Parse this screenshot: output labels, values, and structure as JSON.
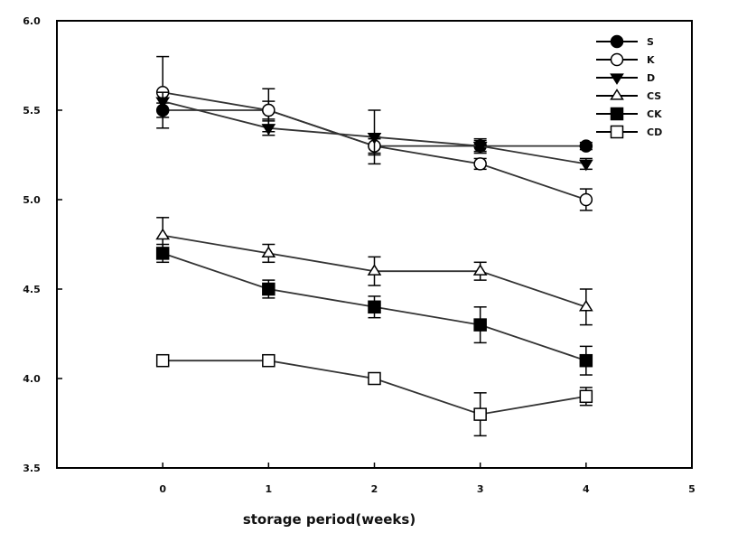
{
  "chart_data": {
    "type": "line",
    "title": "",
    "xlabel": "storage period(weeks)",
    "ylabel": "",
    "x": [
      0,
      1,
      2,
      3,
      4
    ],
    "xlim": [
      -1,
      5
    ],
    "ylim": [
      3.5,
      6.0
    ],
    "xticks": [
      "0",
      "1",
      "2",
      "3",
      "4",
      "5"
    ],
    "yticks": [
      "3.5",
      "4.0",
      "4.5",
      "5.0",
      "5.5",
      "6.0"
    ],
    "grid": false,
    "legend_position": "top-right",
    "series": [
      {
        "name": "S",
        "marker": "circle-filled",
        "values": [
          5.5,
          5.5,
          5.3,
          5.3,
          5.3
        ],
        "errors": [
          0.04,
          0.05,
          0.04,
          0.03,
          0.02
        ]
      },
      {
        "name": "K",
        "marker": "circle-open",
        "values": [
          5.6,
          5.5,
          5.3,
          5.2,
          5.0
        ],
        "errors": [
          0.2,
          0.12,
          0.05,
          0.03,
          0.06
        ]
      },
      {
        "name": "D",
        "marker": "triangle-filled",
        "values": [
          5.55,
          5.4,
          5.35,
          5.3,
          5.2
        ],
        "errors": [
          0.05,
          0.04,
          0.15,
          0.04,
          0.03
        ]
      },
      {
        "name": "CS",
        "marker": "triangle-open",
        "values": [
          4.8,
          4.7,
          4.6,
          4.6,
          4.4
        ],
        "errors": [
          0.1,
          0.05,
          0.08,
          0.05,
          0.1
        ]
      },
      {
        "name": "CK",
        "marker": "square-filled",
        "values": [
          4.7,
          4.5,
          4.4,
          4.3,
          4.1
        ],
        "errors": [
          0.05,
          0.05,
          0.06,
          0.1,
          0.08
        ]
      },
      {
        "name": "CD",
        "marker": "square-open",
        "values": [
          4.1,
          4.1,
          4.0,
          3.8,
          3.9
        ],
        "errors": [
          0.03,
          0.03,
          0.03,
          0.12,
          0.05
        ]
      }
    ]
  }
}
